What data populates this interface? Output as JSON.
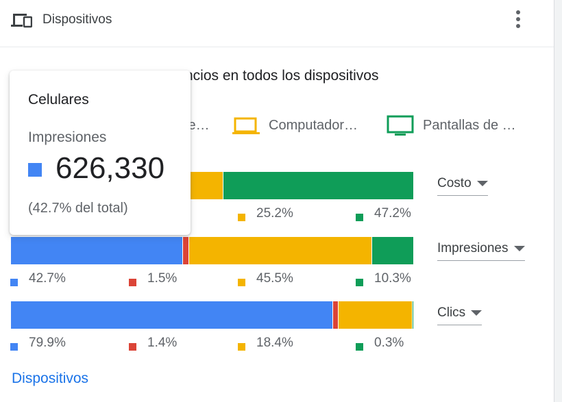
{
  "header": {
    "title": "Dispositivos"
  },
  "chart_data": {
    "type": "stacked-bar",
    "subtitle": "ncios en todos los dispositivos",
    "legend": [
      "le…",
      "Computador…",
      "Pantallas de …"
    ],
    "xlim": [
      0,
      100
    ],
    "colors": [
      "#4285f4",
      "#db4437",
      "#f4b400",
      "#0f9d58"
    ],
    "rows": [
      {
        "metric": "Costo",
        "values": [
          null,
          null,
          25.2,
          47.2
        ],
        "value_labels": [
          null,
          null,
          "25.2%",
          "47.2%"
        ]
      },
      {
        "metric": "Impresiones",
        "values": [
          42.7,
          1.5,
          45.5,
          10.3
        ],
        "value_labels": [
          "42.7%",
          "1.5%",
          "45.5%",
          "10.3%"
        ]
      },
      {
        "metric": "Clics",
        "values": [
          79.9,
          1.4,
          18.4,
          0.3
        ],
        "value_labels": [
          "79.9%",
          "1.4%",
          "18.4%",
          "0.3%"
        ]
      }
    ]
  },
  "tooltip": {
    "title": "Celulares",
    "metric": "Impresiones",
    "value": "626,330",
    "share": "(42.7% del total)"
  },
  "footer": {
    "link": "Dispositivos"
  }
}
